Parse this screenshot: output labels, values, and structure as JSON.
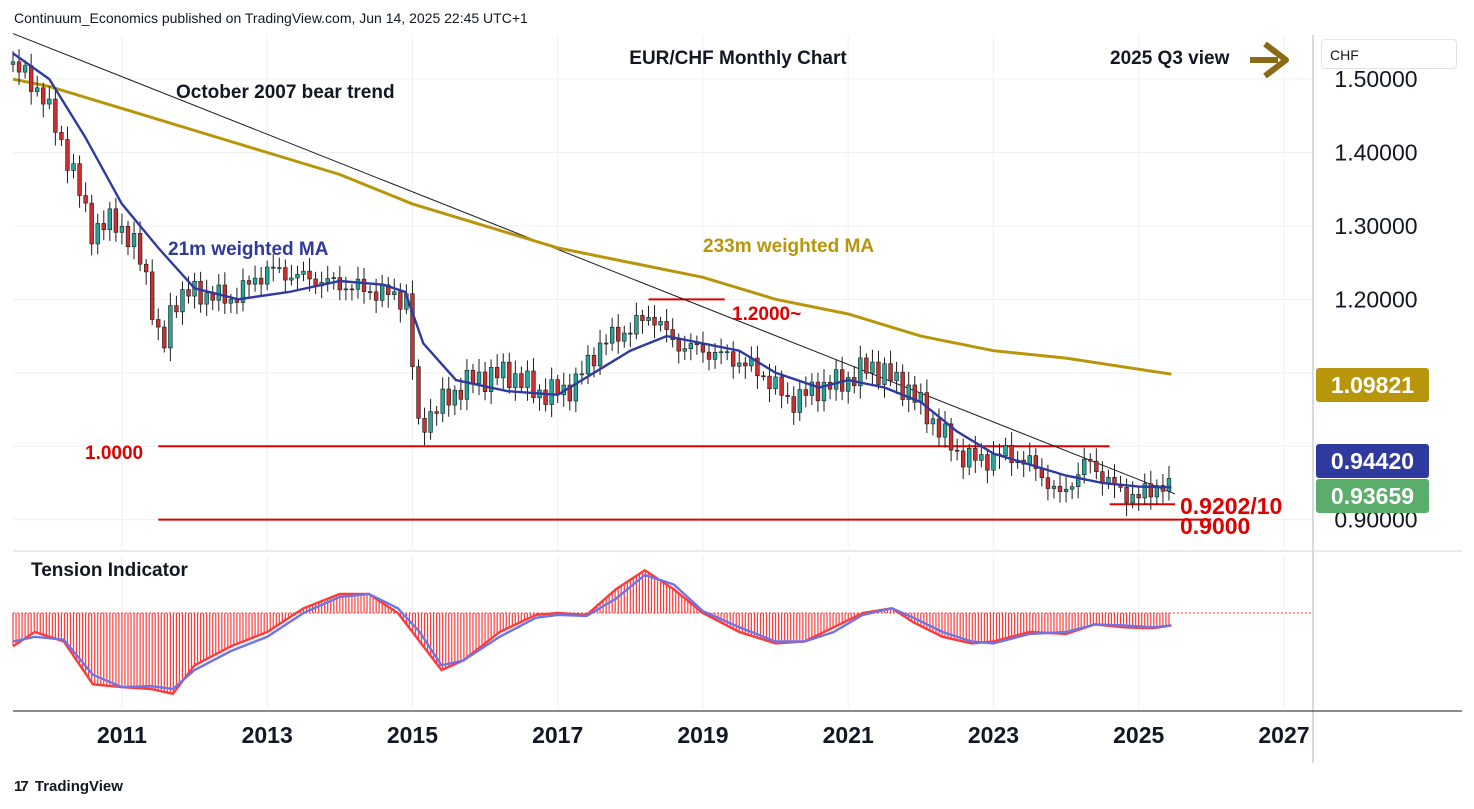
{
  "header": {
    "published_by": "Continuum_Economics published on TradingView.com, Jun 14, 2025 22:45 UTC+1"
  },
  "footer": {
    "brand": "TradingView",
    "logo_glyph": "17"
  },
  "currency_selector": "CHF",
  "colors": {
    "up_candle": "#26a69a",
    "down_candle": "#cc2f2f",
    "ma21": "#2f3a9e",
    "ma233": "#b8960c",
    "level": "#e00000",
    "trend": "#1b1b1b",
    "tension_blue": "#6e74e6",
    "tension_red": "#ff3a3a"
  },
  "chart_data": [
    {
      "type": "candlestick",
      "title": "EUR/CHF Monthly Chart",
      "frequency": "monthly",
      "x_tick_labels": [
        "2011",
        "2013",
        "2015",
        "2017",
        "2019",
        "2021",
        "2023",
        "2025",
        "2027"
      ],
      "y_tick_labels": [
        "1.50000",
        "1.40000",
        "1.30000",
        "1.20000",
        "0.90000"
      ],
      "xlim": [
        2009.5,
        2027.4
      ],
      "ylim": [
        0.86,
        1.56
      ],
      "grid": true,
      "annotations": {
        "view": "2025 Q3 view",
        "trend_label": "October 2007 bear trend",
        "ma21_label": "21m weighted MA",
        "ma233_label": "233m weighted MA",
        "level_1_2": "1.2000~",
        "level_1_0": "1.0000",
        "support_0920": "0.9202/10",
        "support_0900": "0.9000"
      },
      "price_badges": [
        {
          "value": "1.09821",
          "series": "233m weighted MA",
          "color": "#b8960c"
        },
        {
          "value": "0.94420",
          "series": "21m weighted MA",
          "color": "#2f3a9e"
        },
        {
          "value": "0.93659",
          "series": "EUR/CHF close",
          "color": "#5aad6a"
        }
      ],
      "levels": [
        {
          "label": "1.2000~",
          "value": 1.2,
          "x_from": 2018.25,
          "x_to": 2019.3
        },
        {
          "label": "1.0000",
          "value": 1.0,
          "x_from": 2011.5,
          "x_to": 2024.6
        },
        {
          "label": "0.9202/10",
          "value": 0.921,
          "x_from": 2024.6,
          "x_to": 2025.5
        },
        {
          "label": "0.9000",
          "value": 0.9,
          "x_from": 2011.5,
          "x_to": 2026.0
        }
      ],
      "trend_line": {
        "x": [
          2009.5,
          2025.5
        ],
        "y": [
          1.562,
          0.935
        ]
      },
      "series": [
        {
          "name": "EUR/CHF close",
          "x": [
            2009.5,
            2009.9,
            2010.3,
            2010.6,
            2010.9,
            2011.3,
            2011.55,
            2011.7,
            2012.0,
            2012.5,
            2013.0,
            2013.5,
            2014.0,
            2014.5,
            2014.95,
            2015.05,
            2015.3,
            2015.8,
            2016.3,
            2016.8,
            2017.2,
            2017.6,
            2018.0,
            2018.3,
            2018.6,
            2019.0,
            2019.4,
            2019.8,
            2020.2,
            2020.6,
            2021.0,
            2021.3,
            2021.8,
            2022.2,
            2022.5,
            2022.8,
            2023.2,
            2023.6,
            2023.9,
            2024.3,
            2024.7,
            2025.0,
            2025.3,
            2025.45
          ],
          "y": [
            1.52,
            1.48,
            1.38,
            1.29,
            1.31,
            1.25,
            1.12,
            1.2,
            1.21,
            1.2,
            1.24,
            1.23,
            1.22,
            1.21,
            1.2,
            1.02,
            1.05,
            1.09,
            1.1,
            1.07,
            1.08,
            1.14,
            1.16,
            1.18,
            1.14,
            1.13,
            1.12,
            1.1,
            1.06,
            1.08,
            1.09,
            1.11,
            1.08,
            1.03,
            0.99,
            0.98,
            0.99,
            0.97,
            0.93,
            0.98,
            0.94,
            0.93,
            0.95,
            0.937
          ]
        },
        {
          "name": "21m weighted MA",
          "x": [
            2009.5,
            2010.0,
            2010.5,
            2011.0,
            2011.5,
            2012.0,
            2012.6,
            2013.3,
            2014.0,
            2014.6,
            2014.9,
            2015.15,
            2015.6,
            2016.3,
            2017.0,
            2017.5,
            2018.0,
            2018.5,
            2019.0,
            2019.5,
            2020.0,
            2020.6,
            2021.0,
            2021.5,
            2022.0,
            2022.5,
            2023.0,
            2023.5,
            2024.0,
            2024.5,
            2025.0,
            2025.45
          ],
          "y": [
            1.535,
            1.5,
            1.42,
            1.33,
            1.27,
            1.215,
            1.2,
            1.21,
            1.225,
            1.22,
            1.21,
            1.14,
            1.09,
            1.075,
            1.07,
            1.1,
            1.13,
            1.15,
            1.14,
            1.13,
            1.1,
            1.08,
            1.09,
            1.08,
            1.06,
            1.02,
            0.99,
            0.975,
            0.96,
            0.95,
            0.945,
            0.944
          ]
        },
        {
          "name": "233m weighted MA",
          "x": [
            2009.5,
            2010.0,
            2011.0,
            2012.0,
            2013.0,
            2014.0,
            2015.0,
            2016.0,
            2017.0,
            2018.0,
            2019.0,
            2020.0,
            2021.0,
            2022.0,
            2023.0,
            2024.0,
            2025.45
          ],
          "y": [
            1.5,
            1.49,
            1.46,
            1.43,
            1.4,
            1.37,
            1.33,
            1.3,
            1.27,
            1.25,
            1.23,
            1.2,
            1.18,
            1.15,
            1.13,
            1.12,
            1.098
          ]
        }
      ]
    },
    {
      "type": "area",
      "title": "Tension Indicator",
      "xlim": [
        2009.5,
        2027.4
      ],
      "ylim": [
        -1.0,
        0.6
      ],
      "zero_line": 0,
      "series": [
        {
          "name": "",
          "x": [
            2009.5,
            2009.8,
            2010.2,
            2010.6,
            2011.0,
            2011.4,
            2011.7,
            2012.0,
            2012.5,
            2013.0,
            2013.5,
            2014.0,
            2014.4,
            2014.8,
            2015.1,
            2015.4,
            2015.7,
            2016.2,
            2016.7,
            2017.0,
            2017.4,
            2017.8,
            2018.2,
            2018.6,
            2019.0,
            2019.5,
            2020.0,
            2020.4,
            2020.8,
            2021.2,
            2021.6,
            2021.9,
            2022.3,
            2022.7,
            2023.0,
            2023.5,
            2024.0,
            2024.4,
            2024.8,
            2025.2,
            2025.45
          ],
          "y": [
            -0.35,
            -0.2,
            -0.3,
            -0.75,
            -0.78,
            -0.8,
            -0.85,
            -0.55,
            -0.35,
            -0.2,
            0.05,
            0.2,
            0.2,
            0.0,
            -0.3,
            -0.6,
            -0.5,
            -0.2,
            -0.02,
            0.0,
            -0.02,
            0.25,
            0.45,
            0.25,
            0.0,
            -0.2,
            -0.32,
            -0.3,
            -0.15,
            0.0,
            0.05,
            -0.1,
            -0.25,
            -0.32,
            -0.3,
            -0.2,
            -0.22,
            -0.12,
            -0.15,
            -0.16,
            -0.13
          ]
        },
        {
          "name": "",
          "x": [
            2009.5,
            2009.8,
            2010.2,
            2010.6,
            2011.0,
            2011.4,
            2011.7,
            2012.0,
            2012.5,
            2013.0,
            2013.5,
            2014.0,
            2014.4,
            2014.8,
            2015.1,
            2015.4,
            2015.7,
            2016.2,
            2016.7,
            2017.0,
            2017.4,
            2017.8,
            2018.2,
            2018.6,
            2019.0,
            2019.5,
            2020.0,
            2020.4,
            2020.8,
            2021.2,
            2021.6,
            2021.9,
            2022.3,
            2022.7,
            2023.0,
            2023.5,
            2024.0,
            2024.4,
            2024.8,
            2025.2,
            2025.45
          ],
          "y": [
            -0.3,
            -0.25,
            -0.28,
            -0.65,
            -0.78,
            -0.77,
            -0.8,
            -0.6,
            -0.4,
            -0.25,
            0.0,
            0.17,
            0.2,
            0.05,
            -0.2,
            -0.55,
            -0.5,
            -0.25,
            -0.05,
            -0.02,
            -0.03,
            0.15,
            0.4,
            0.3,
            0.02,
            -0.15,
            -0.3,
            -0.3,
            -0.2,
            -0.02,
            0.05,
            -0.05,
            -0.2,
            -0.3,
            -0.32,
            -0.22,
            -0.2,
            -0.12,
            -0.13,
            -0.15,
            -0.13
          ]
        }
      ]
    }
  ]
}
